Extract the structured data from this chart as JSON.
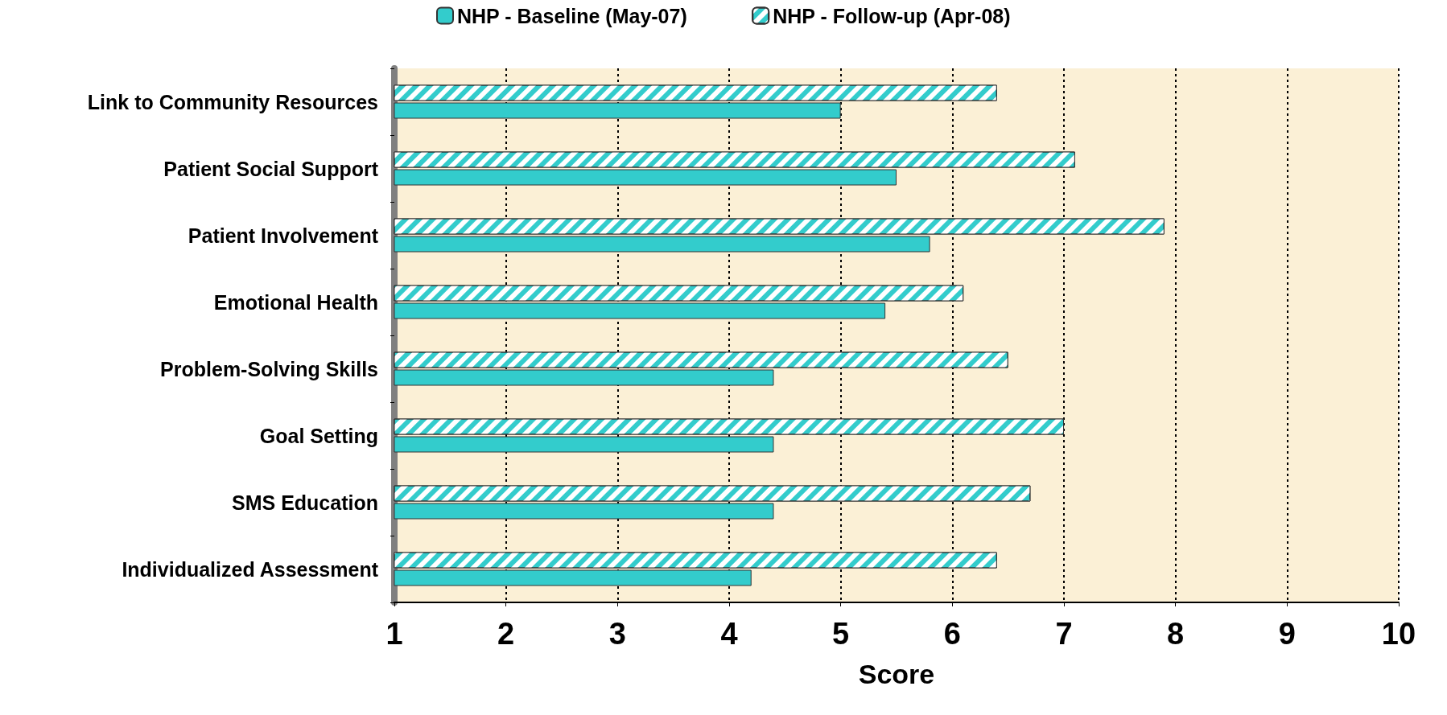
{
  "chart_data": {
    "type": "bar",
    "orientation": "horizontal",
    "xlabel": "Score",
    "categories": [
      "Link to Community Resources",
      "Patient Social Support",
      "Patient Involvement",
      "Emotional Health",
      "Problem-Solving Skills",
      "Goal Setting",
      "SMS Education",
      "Individualized Assessment"
    ],
    "series": [
      {
        "name": "NHP - Baseline (May-07)",
        "color": "#33cccc",
        "values": [
          5.0,
          5.5,
          5.8,
          5.4,
          4.4,
          4.4,
          4.4,
          4.2
        ]
      },
      {
        "name": "NHP - Follow-up (Apr-08)",
        "color": "#33cccc",
        "values": [
          6.4,
          7.1,
          7.9,
          6.1,
          6.5,
          7.0,
          6.7,
          6.4
        ]
      }
    ],
    "xlim": [
      1,
      10
    ],
    "xticks": [
      1,
      2,
      3,
      4,
      5,
      6,
      7,
      8,
      9,
      10
    ],
    "grid": "x",
    "legend": "top"
  }
}
